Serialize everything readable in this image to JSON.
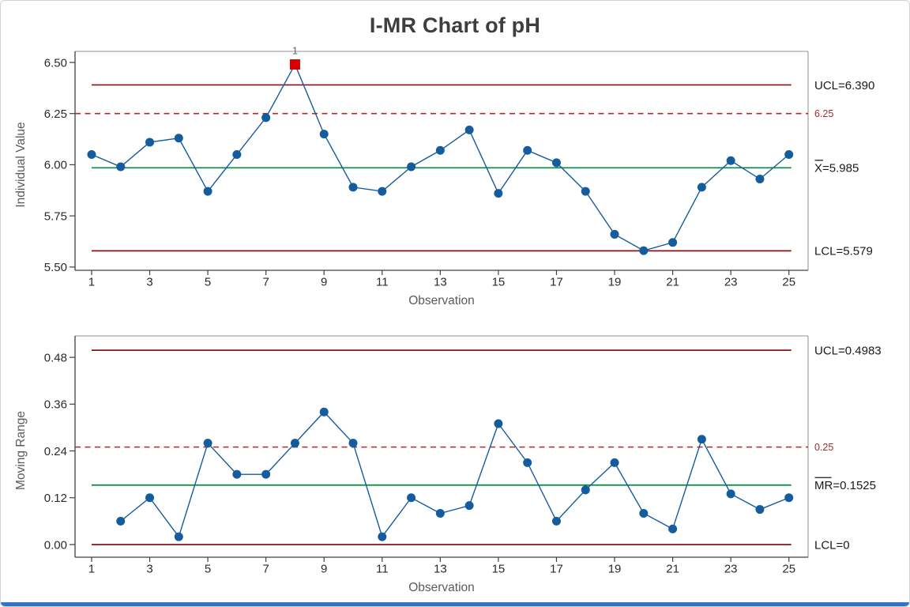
{
  "title": "I-MR Chart of pH",
  "colors": {
    "point_blue": "#155C9E",
    "series_line_blue": "#155C9E",
    "center_green": "#008C3C",
    "limit_dark_red": "#841619",
    "spec_red": "#B3282D",
    "out_of_control_red": "#D40000",
    "ooc_label_gray": "#666666",
    "tick_text": "#2b2b2b",
    "axis_title_text": "#5a5a5a",
    "label_text": "#1a1a1a",
    "red_label_text": "#A22C2A",
    "frame_gray": "#a8a8a8",
    "axis_dark": "#404040",
    "card_border": "#d2d2d2",
    "bottom_strip_blue": "#2E75C8",
    "title_text": "#3e3e3e"
  },
  "chart_data": [
    {
      "type": "line",
      "name": "individuals-chart",
      "ylabel": "Individual Value",
      "xlabel": "Observation",
      "x": [
        1,
        2,
        3,
        4,
        5,
        6,
        7,
        8,
        9,
        10,
        11,
        12,
        13,
        14,
        15,
        16,
        17,
        18,
        19,
        20,
        21,
        22,
        23,
        24,
        25
      ],
      "values": [
        6.05,
        5.99,
        6.11,
        6.13,
        5.87,
        6.05,
        6.23,
        6.49,
        6.15,
        5.89,
        5.87,
        5.99,
        6.07,
        6.17,
        5.86,
        6.07,
        6.01,
        5.87,
        5.66,
        5.58,
        5.62,
        5.89,
        6.02,
        5.93,
        6.05
      ],
      "center": 5.985,
      "ucl": 6.39,
      "lcl": 5.579,
      "spec": 6.25,
      "labels": {
        "ucl": "UCL=6.390",
        "center": "X=5.985",
        "lcl": "LCL=5.579",
        "spec": "6.25",
        "center_overbar_chars": 1
      },
      "yticks": [
        6.5,
        6.25,
        6.0,
        5.75,
        5.5
      ],
      "ytick_labels": [
        "6.50",
        "6.25",
        "6.00",
        "5.75",
        "5.50"
      ],
      "xticks": [
        1,
        3,
        5,
        7,
        9,
        11,
        13,
        15,
        17,
        19,
        21,
        23,
        25
      ],
      "ylim": [
        5.484,
        6.554
      ],
      "xlim": [
        0.43,
        25.66
      ],
      "grid": false,
      "legend": "none",
      "out_of_control": [
        {
          "x": 8,
          "label": "1"
        }
      ]
    },
    {
      "type": "line",
      "name": "moving-range-chart",
      "ylabel": "Moving Range",
      "xlabel": "Observation",
      "x": [
        2,
        3,
        4,
        5,
        6,
        7,
        8,
        9,
        10,
        11,
        12,
        13,
        14,
        15,
        16,
        17,
        18,
        19,
        20,
        21,
        22,
        23,
        24,
        25
      ],
      "values": [
        0.06,
        0.12,
        0.02,
        0.26,
        0.18,
        0.18,
        0.26,
        0.34,
        0.26,
        0.02,
        0.12,
        0.08,
        0.1,
        0.31,
        0.21,
        0.06,
        0.14,
        0.21,
        0.08,
        0.04,
        0.27,
        0.13,
        0.09,
        0.12
      ],
      "center": 0.1525,
      "ucl": 0.4983,
      "lcl": 0,
      "spec": 0.25,
      "labels": {
        "ucl": "UCL=0.4983",
        "center": "MR=0.1525",
        "lcl": "LCL=0",
        "spec": "0.25",
        "center_overbar_chars": 2
      },
      "yticks": [
        0.48,
        0.36,
        0.24,
        0.12,
        0.0
      ],
      "ytick_labels": [
        "0.48",
        "0.36",
        "0.24",
        "0.12",
        "0.00"
      ],
      "xticks": [
        1,
        3,
        5,
        7,
        9,
        11,
        13,
        15,
        17,
        19,
        21,
        23,
        25
      ],
      "ylim": [
        -0.0325,
        0.535
      ],
      "xlim": [
        0.43,
        25.66
      ],
      "grid": false,
      "legend": "none",
      "out_of_control": []
    }
  ]
}
